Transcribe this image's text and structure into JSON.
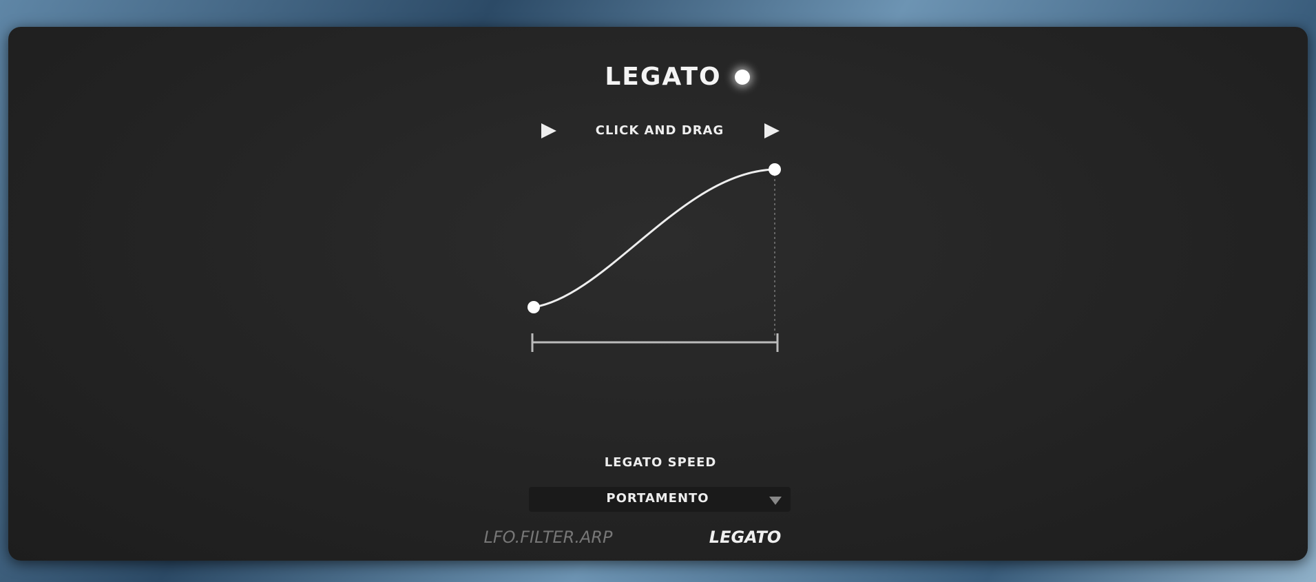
{
  "header": {
    "title": "LEGATO",
    "hint": "CLICK AND DRAG"
  },
  "controls": {
    "label": "LEGATO SPEED",
    "dropdown": "PORTAMENTO"
  },
  "tabs": [
    "LFO.FILTER.ARP",
    "LEGATO"
  ]
}
